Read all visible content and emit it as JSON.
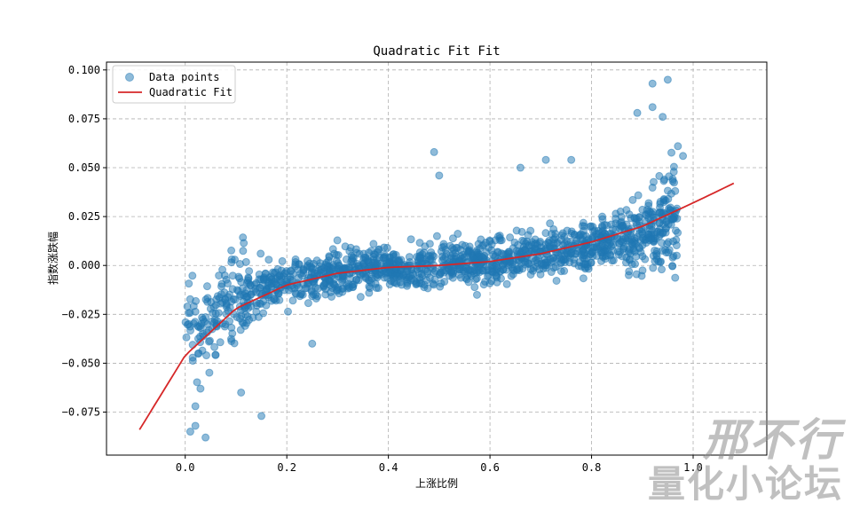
{
  "chart_data": {
    "type": "scatter",
    "title": "Quadratic Fit Fit",
    "xlabel": "上涨比例",
    "ylabel": "指数涨跌幅",
    "xlim": [
      -0.155,
      1.145
    ],
    "ylim": [
      -0.097,
      0.104
    ],
    "xticks": [
      "0.0",
      "0.2",
      "0.4",
      "0.6",
      "0.8",
      "1.0"
    ],
    "xtick_values": [
      0.0,
      0.2,
      0.4,
      0.6,
      0.8,
      1.0
    ],
    "yticks": [
      "−0.075",
      "−0.050",
      "−0.025",
      "0.000",
      "0.025",
      "0.050",
      "0.075",
      "0.100"
    ],
    "ytick_values": [
      -0.075,
      -0.05,
      -0.025,
      0.0,
      0.025,
      0.05,
      0.075,
      0.1
    ],
    "grid": true,
    "legend_position": "top-left",
    "series": [
      {
        "name": "Data points",
        "kind": "scatter",
        "color": "#1f77b4",
        "alpha": 0.5,
        "x_range": [
          0.0,
          0.97
        ],
        "trend": "cubic-like increasing around fit curve"
      },
      {
        "name": "Quadratic Fit",
        "kind": "line",
        "color": "#d62728",
        "x": [
          -0.09,
          0.0,
          0.1,
          0.2,
          0.3,
          0.4,
          0.5,
          0.6,
          0.7,
          0.8,
          0.9,
          1.0,
          1.08
        ],
        "y": [
          -0.084,
          -0.046,
          -0.022,
          -0.01,
          -0.004,
          -0.001,
          0.0,
          0.002,
          0.006,
          0.012,
          0.02,
          0.032,
          0.042
        ]
      }
    ],
    "outliers": [
      {
        "x": 0.92,
        "y": 0.093
      },
      {
        "x": 0.95,
        "y": 0.095
      },
      {
        "x": 0.89,
        "y": 0.078
      },
      {
        "x": 0.92,
        "y": 0.081
      },
      {
        "x": 0.94,
        "y": 0.076
      },
      {
        "x": 0.97,
        "y": 0.061
      },
      {
        "x": 0.98,
        "y": 0.056
      },
      {
        "x": 0.49,
        "y": 0.058
      },
      {
        "x": 0.5,
        "y": 0.046
      },
      {
        "x": 0.01,
        "y": -0.085
      },
      {
        "x": 0.04,
        "y": -0.088
      },
      {
        "x": 0.02,
        "y": -0.082
      },
      {
        "x": 0.15,
        "y": -0.077
      },
      {
        "x": 0.11,
        "y": -0.065
      },
      {
        "x": 0.25,
        "y": -0.04
      },
      {
        "x": 0.02,
        "y": -0.072
      },
      {
        "x": 0.03,
        "y": -0.063
      },
      {
        "x": 0.71,
        "y": 0.054
      },
      {
        "x": 0.76,
        "y": 0.054
      },
      {
        "x": 0.66,
        "y": 0.05
      }
    ]
  },
  "watermark": {
    "line1": "邢不行",
    "line2": "量化小论坛"
  }
}
